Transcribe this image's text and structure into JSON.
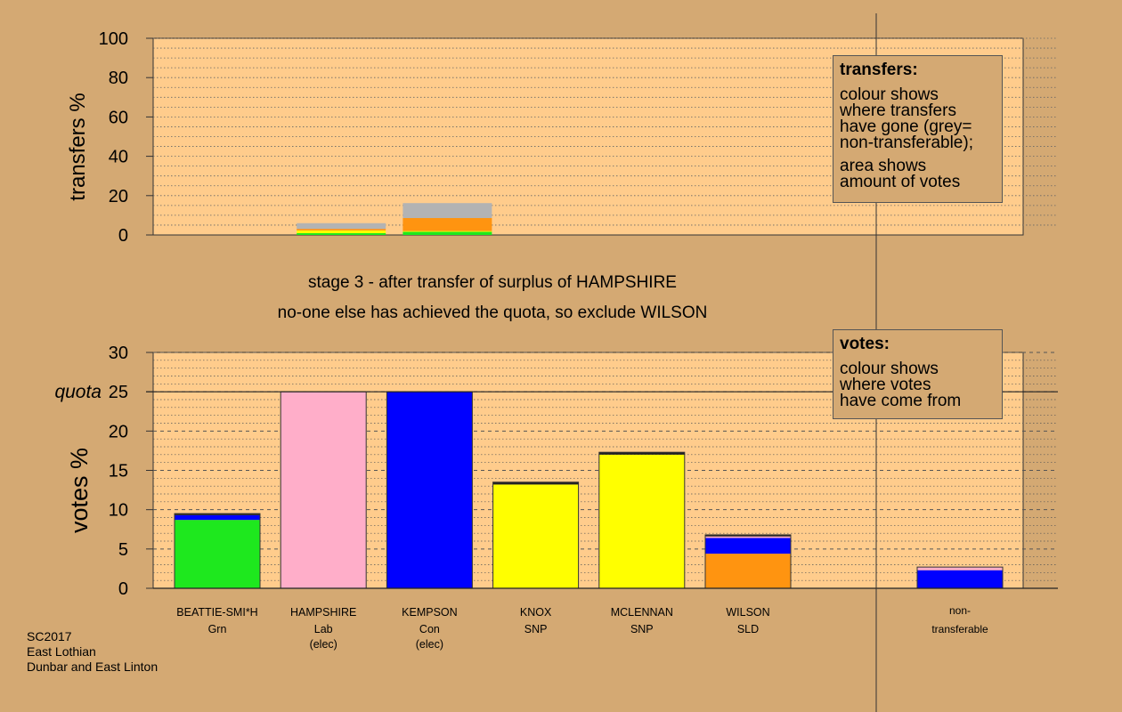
{
  "chart_data": [
    {
      "id": "transfers",
      "type": "bar",
      "stacked": true,
      "ylabel": "transfers %",
      "ylim": [
        0,
        100
      ],
      "yticks": [
        0,
        20,
        40,
        60,
        80,
        100
      ],
      "grid": true,
      "categories": [
        "BEATTIE-SMI*H",
        "HAMPSHIRE",
        "KEMPSON",
        "KNOX",
        "MCLENNAN",
        "WILSON"
      ],
      "series": [
        {
          "color": "#1ee81e",
          "values": [
            0,
            0.9,
            1.6,
            0,
            0,
            0
          ]
        },
        {
          "color": "#ffff00",
          "values": [
            0,
            1.4,
            0.4,
            0,
            0,
            0
          ]
        },
        {
          "color": "#ff9410",
          "values": [
            0,
            0.8,
            6.6,
            0,
            0,
            0
          ]
        },
        {
          "color": "#b3b3b3",
          "values": [
            0,
            2.9,
            7.6,
            0,
            0,
            0
          ]
        }
      ],
      "legend": {
        "title": "transfers:",
        "lines1": [
          "colour shows",
          "where transfers",
          "have gone (grey=",
          "non-transferable);"
        ],
        "lines2": [
          "area shows",
          "amount of votes"
        ],
        "placement": "top-right"
      }
    },
    {
      "id": "votes",
      "type": "bar",
      "stacked": true,
      "ylabel": "votes %",
      "ylim": [
        0,
        30
      ],
      "yticks": [
        0,
        5,
        10,
        15,
        20,
        25,
        30
      ],
      "grid": true,
      "quota": 25,
      "quota_label": "quota",
      "categories": [
        {
          "name": "BEATTIE-SMI*H",
          "party": "Grn",
          "status": ""
        },
        {
          "name": "HAMPSHIRE",
          "party": "Lab",
          "status": "(elec)"
        },
        {
          "name": "KEMPSON",
          "party": "Con",
          "status": "(elec)"
        },
        {
          "name": "KNOX",
          "party": "SNP",
          "status": ""
        },
        {
          "name": "MCLENNAN",
          "party": "SNP",
          "status": ""
        },
        {
          "name": "WILSON",
          "party": "SLD",
          "status": ""
        }
      ],
      "bars": [
        {
          "segments": [
            {
              "color": "#1ee81e",
              "value": 8.7
            },
            {
              "color": "#0000ff",
              "value": 0.6
            },
            {
              "color": "#222222",
              "value": 0.2
            }
          ]
        },
        {
          "segments": [
            {
              "color": "#ffaec9",
              "value": 25.0
            }
          ]
        },
        {
          "segments": [
            {
              "color": "#0000ff",
              "value": 25.0
            }
          ]
        },
        {
          "segments": [
            {
              "color": "#ffff00",
              "value": 13.2
            },
            {
              "color": "#222222",
              "value": 0.3
            }
          ]
        },
        {
          "segments": [
            {
              "color": "#ffff00",
              "value": 17.0
            },
            {
              "color": "#222222",
              "value": 0.3
            }
          ]
        },
        {
          "segments": [
            {
              "color": "#ff9410",
              "value": 4.4
            },
            {
              "color": "#0000ff",
              "value": 2.0
            },
            {
              "color": "#ffaec9",
              "value": 0.2
            },
            {
              "color": "#222222",
              "value": 0.2
            }
          ]
        }
      ],
      "nontransferable": {
        "label1": "non-",
        "label2": "transferable",
        "segments": [
          {
            "color": "#0000ff",
            "value": 2.3
          },
          {
            "color": "#ffaec9",
            "value": 0.4
          }
        ]
      },
      "legend": {
        "title": "votes:",
        "lines1": [
          "colour shows",
          "where votes",
          "have come from"
        ],
        "placement": "top-right"
      }
    }
  ],
  "stage_text": {
    "line1": "stage 3 - after transfer of surplus of HAMPSHIRE",
    "line2": "no-one else has achieved the quota, so exclude WILSON"
  },
  "caption": {
    "line1": "SC2017",
    "line2": "East Lothian",
    "line3": "Dunbar and East Linton"
  },
  "colors": {
    "background": "#d4a973",
    "panel": "#ffcc8c"
  }
}
